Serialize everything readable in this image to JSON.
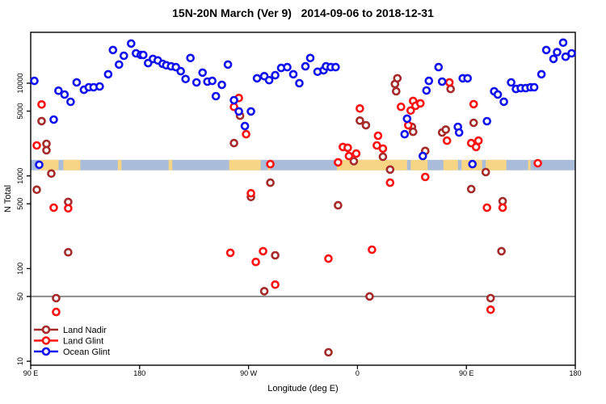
{
  "chart": {
    "title": "15N-20N March (Ver 9)   2014-09-06 to 2018-12-31",
    "xlabel": "Longitude (deg E)",
    "ylabel": "N Total"
  },
  "chart_data": {
    "type": "scatter",
    "title": "15N-20N March (Ver 9)   2014-09-06 to 2018-12-31",
    "xlabel": "Longitude (deg E)",
    "ylabel": "N Total",
    "x_axis": {
      "span_deg": 450,
      "note": "axis wraps eastward from 90E through 180, 90W, 0, back to 90E and 180",
      "ticks": [
        {
          "d": 0,
          "label": "90 E"
        },
        {
          "d": 90,
          "label": "180"
        },
        {
          "d": 180,
          "label": "90 W"
        },
        {
          "d": 270,
          "label": "0"
        },
        {
          "d": 360,
          "label": "90 E"
        },
        {
          "d": 450,
          "label": "180"
        }
      ]
    },
    "y_axis": {
      "scale": "log",
      "min": 10,
      "max": 35000,
      "ticks": [
        10,
        50,
        100,
        500,
        1000,
        5000,
        10000
      ]
    },
    "reference_line": {
      "y": 50,
      "color": "#8c8c8c"
    },
    "latitude_strip": {
      "n_range": [
        1150,
        1490
      ],
      "ocean_color": "#a9bcd9",
      "land_color": "#f8d584",
      "land_segments_deg": [
        [
          7,
          23
        ],
        [
          27,
          41
        ],
        [
          72,
          75
        ],
        [
          114,
          117
        ],
        [
          164,
          190
        ],
        [
          196,
          198
        ],
        [
          253,
          311
        ],
        [
          314,
          328
        ],
        [
          341,
          353
        ],
        [
          356,
          373
        ],
        [
          376,
          393
        ],
        [
          411,
          413
        ]
      ]
    },
    "legend": {
      "position": "bottom-left",
      "items": [
        {
          "label": "Land Nadir",
          "color": "#a52a2a"
        },
        {
          "label": "Land Glint",
          "color": "#ff1111"
        },
        {
          "label": "Ocean Glint",
          "color": "#1212ef"
        }
      ]
    },
    "series": [
      {
        "name": "Land Nadir",
        "color": "#a52a2a",
        "points": [
          [
            9,
            3900
          ],
          [
            13,
            2220
          ],
          [
            13,
            1890
          ],
          [
            17,
            1060
          ],
          [
            5,
            709
          ],
          [
            31,
            524
          ],
          [
            31,
            150
          ],
          [
            21,
            48
          ],
          [
            193,
            57
          ],
          [
            168,
            2260
          ],
          [
            173,
            4460
          ],
          [
            182,
            592
          ],
          [
            198,
            845
          ],
          [
            202,
            139
          ],
          [
            254,
            482
          ],
          [
            267,
            1440
          ],
          [
            272,
            3950
          ],
          [
            277,
            3520
          ],
          [
            291,
            1610
          ],
          [
            297,
            1170
          ],
          [
            301,
            9800
          ],
          [
            303,
            11300
          ],
          [
            302,
            8180
          ],
          [
            315,
            3380
          ],
          [
            316,
            2990
          ],
          [
            326,
            1860
          ],
          [
            340,
            2940
          ],
          [
            343,
            3160
          ],
          [
            347,
            8680
          ],
          [
            366,
            3740
          ],
          [
            376,
            1100
          ],
          [
            364,
            721
          ],
          [
            390,
            534
          ],
          [
            389,
            154
          ],
          [
            380,
            48
          ],
          [
            280,
            50
          ],
          [
            246,
            12.5
          ]
        ]
      },
      {
        "name": "Land Glint",
        "color": "#ff1111",
        "points": [
          [
            9,
            5900
          ],
          [
            5,
            2130
          ],
          [
            19,
            454
          ],
          [
            31,
            447
          ],
          [
            21,
            34
          ],
          [
            168,
            5570
          ],
          [
            172,
            6930
          ],
          [
            178,
            2820
          ],
          [
            182,
            650
          ],
          [
            198,
            1340
          ],
          [
            165,
            148
          ],
          [
            186,
            118
          ],
          [
            192,
            154
          ],
          [
            202,
            67
          ],
          [
            246,
            128
          ],
          [
            282,
            160
          ],
          [
            254,
            1400
          ],
          [
            258,
            2050
          ],
          [
            262,
            2010
          ],
          [
            263,
            1640
          ],
          [
            269,
            1740
          ],
          [
            272,
            5330
          ],
          [
            287,
            2710
          ],
          [
            286,
            2130
          ],
          [
            291,
            1970
          ],
          [
            297,
            845
          ],
          [
            306,
            5570
          ],
          [
            312,
            3520
          ],
          [
            314,
            5070
          ],
          [
            316,
            6440
          ],
          [
            318,
            5700
          ],
          [
            322,
            6070
          ],
          [
            326,
            975
          ],
          [
            344,
            2400
          ],
          [
            346,
            10200
          ],
          [
            364,
            2260
          ],
          [
            366,
            5940
          ],
          [
            368,
            2050
          ],
          [
            370,
            2400
          ],
          [
            377,
            454
          ],
          [
            390,
            454
          ],
          [
            380,
            36
          ],
          [
            419,
            1370
          ]
        ]
      },
      {
        "name": "Ocean Glint",
        "color": "#1212ef",
        "points": [
          [
            3,
            10600
          ],
          [
            23,
            8300
          ],
          [
            28,
            7550
          ],
          [
            33,
            6300
          ],
          [
            38,
            10200
          ],
          [
            44,
            8500
          ],
          [
            48,
            9050
          ],
          [
            52,
            9050
          ],
          [
            57,
            9230
          ],
          [
            64,
            12500
          ],
          [
            68,
            22800
          ],
          [
            73,
            15900
          ],
          [
            77,
            19800
          ],
          [
            83,
            26800
          ],
          [
            87,
            21000
          ],
          [
            91,
            20200
          ],
          [
            93,
            20200
          ],
          [
            97,
            16500
          ],
          [
            101,
            18300
          ],
          [
            105,
            17600
          ],
          [
            109,
            16200
          ],
          [
            112,
            15600
          ],
          [
            116,
            15200
          ],
          [
            120,
            14900
          ],
          [
            124,
            13500
          ],
          [
            128,
            11100
          ],
          [
            132,
            18700
          ],
          [
            137,
            10200
          ],
          [
            142,
            13000
          ],
          [
            146,
            10400
          ],
          [
            150,
            10600
          ],
          [
            153,
            7260
          ],
          [
            158,
            9600
          ],
          [
            163,
            15900
          ],
          [
            168,
            6560
          ],
          [
            172,
            4960
          ],
          [
            177,
            3450
          ],
          [
            182,
            4960
          ],
          [
            187,
            11300
          ],
          [
            193,
            11900
          ],
          [
            197,
            10800
          ],
          [
            202,
            12200
          ],
          [
            207,
            14600
          ],
          [
            212,
            14900
          ],
          [
            217,
            12500
          ],
          [
            222,
            10000
          ],
          [
            227,
            15200
          ],
          [
            231,
            18700
          ],
          [
            237,
            13300
          ],
          [
            242,
            13800
          ],
          [
            244,
            15200
          ],
          [
            248,
            14900
          ],
          [
            252,
            14900
          ],
          [
            7,
            1320
          ],
          [
            19,
            4050
          ],
          [
            309,
            2820
          ],
          [
            311,
            4140
          ],
          [
            324,
            1640
          ],
          [
            327,
            8340
          ],
          [
            329,
            10600
          ],
          [
            337,
            14900
          ],
          [
            340,
            10400
          ],
          [
            353,
            3380
          ],
          [
            354,
            2940
          ],
          [
            357,
            11300
          ],
          [
            361,
            11300
          ],
          [
            365,
            1340
          ],
          [
            377,
            3890
          ],
          [
            383,
            8180
          ],
          [
            386,
            7550
          ],
          [
            391,
            6310
          ],
          [
            397,
            10200
          ],
          [
            401,
            8680
          ],
          [
            405,
            8850
          ],
          [
            409,
            8850
          ],
          [
            413,
            9050
          ],
          [
            416,
            9050
          ],
          [
            422,
            12500
          ],
          [
            426,
            22800
          ],
          [
            432,
            18300
          ],
          [
            435,
            21600
          ],
          [
            440,
            27400
          ],
          [
            442,
            19300
          ],
          [
            447,
            21000
          ]
        ]
      }
    ]
  }
}
